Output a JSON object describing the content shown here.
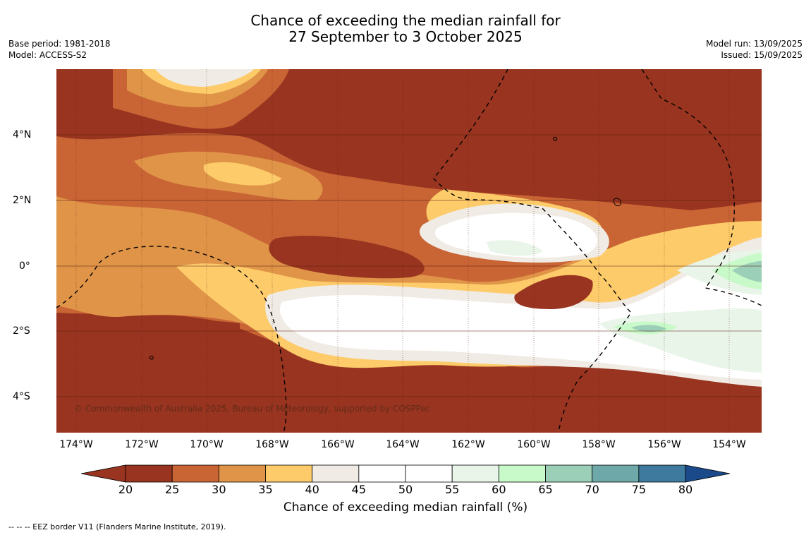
{
  "title": {
    "line1": "Chance of exceeding the median rainfall for",
    "line2": "27 September to 3 October 2025"
  },
  "meta_left": {
    "base_period": "Base period: 1981-2018",
    "model": "Model: ACCESS-S2"
  },
  "meta_right": {
    "model_run": "Model run: 13/09/2025",
    "issued": "Issued: 15/09/2025"
  },
  "map": {
    "x_ticks": [
      "174°W",
      "172°W",
      "170°W",
      "168°W",
      "166°W",
      "164°W",
      "162°W",
      "160°W",
      "158°W",
      "156°W",
      "154°W"
    ],
    "y_ticks": [
      "4°N",
      "2°N",
      "0°",
      "2°S",
      "4°S"
    ],
    "copyright": "© Commonwealth of Australia 2025, Bureau of Meteorology, supported by COSPPac"
  },
  "colorbar": {
    "ticks": [
      "20",
      "25",
      "30",
      "35",
      "40",
      "45",
      "50",
      "55",
      "60",
      "65",
      "70",
      "75",
      "80"
    ],
    "colors": [
      "#98341f",
      "#c96435",
      "#e09448",
      "#fdcb6a",
      "#f0ebe4",
      "#ffffff",
      "#ffffff",
      "#e8f5e8",
      "#c8f9c8",
      "#9ccfb8",
      "#6fa8a8",
      "#3d7a9d",
      "#1a4a8a"
    ],
    "label": "Chance of exceeding median rainfall (%)"
  },
  "footnote": "--  --  -- EEZ border V11 (Flanders Marine Institute, 2019)."
}
